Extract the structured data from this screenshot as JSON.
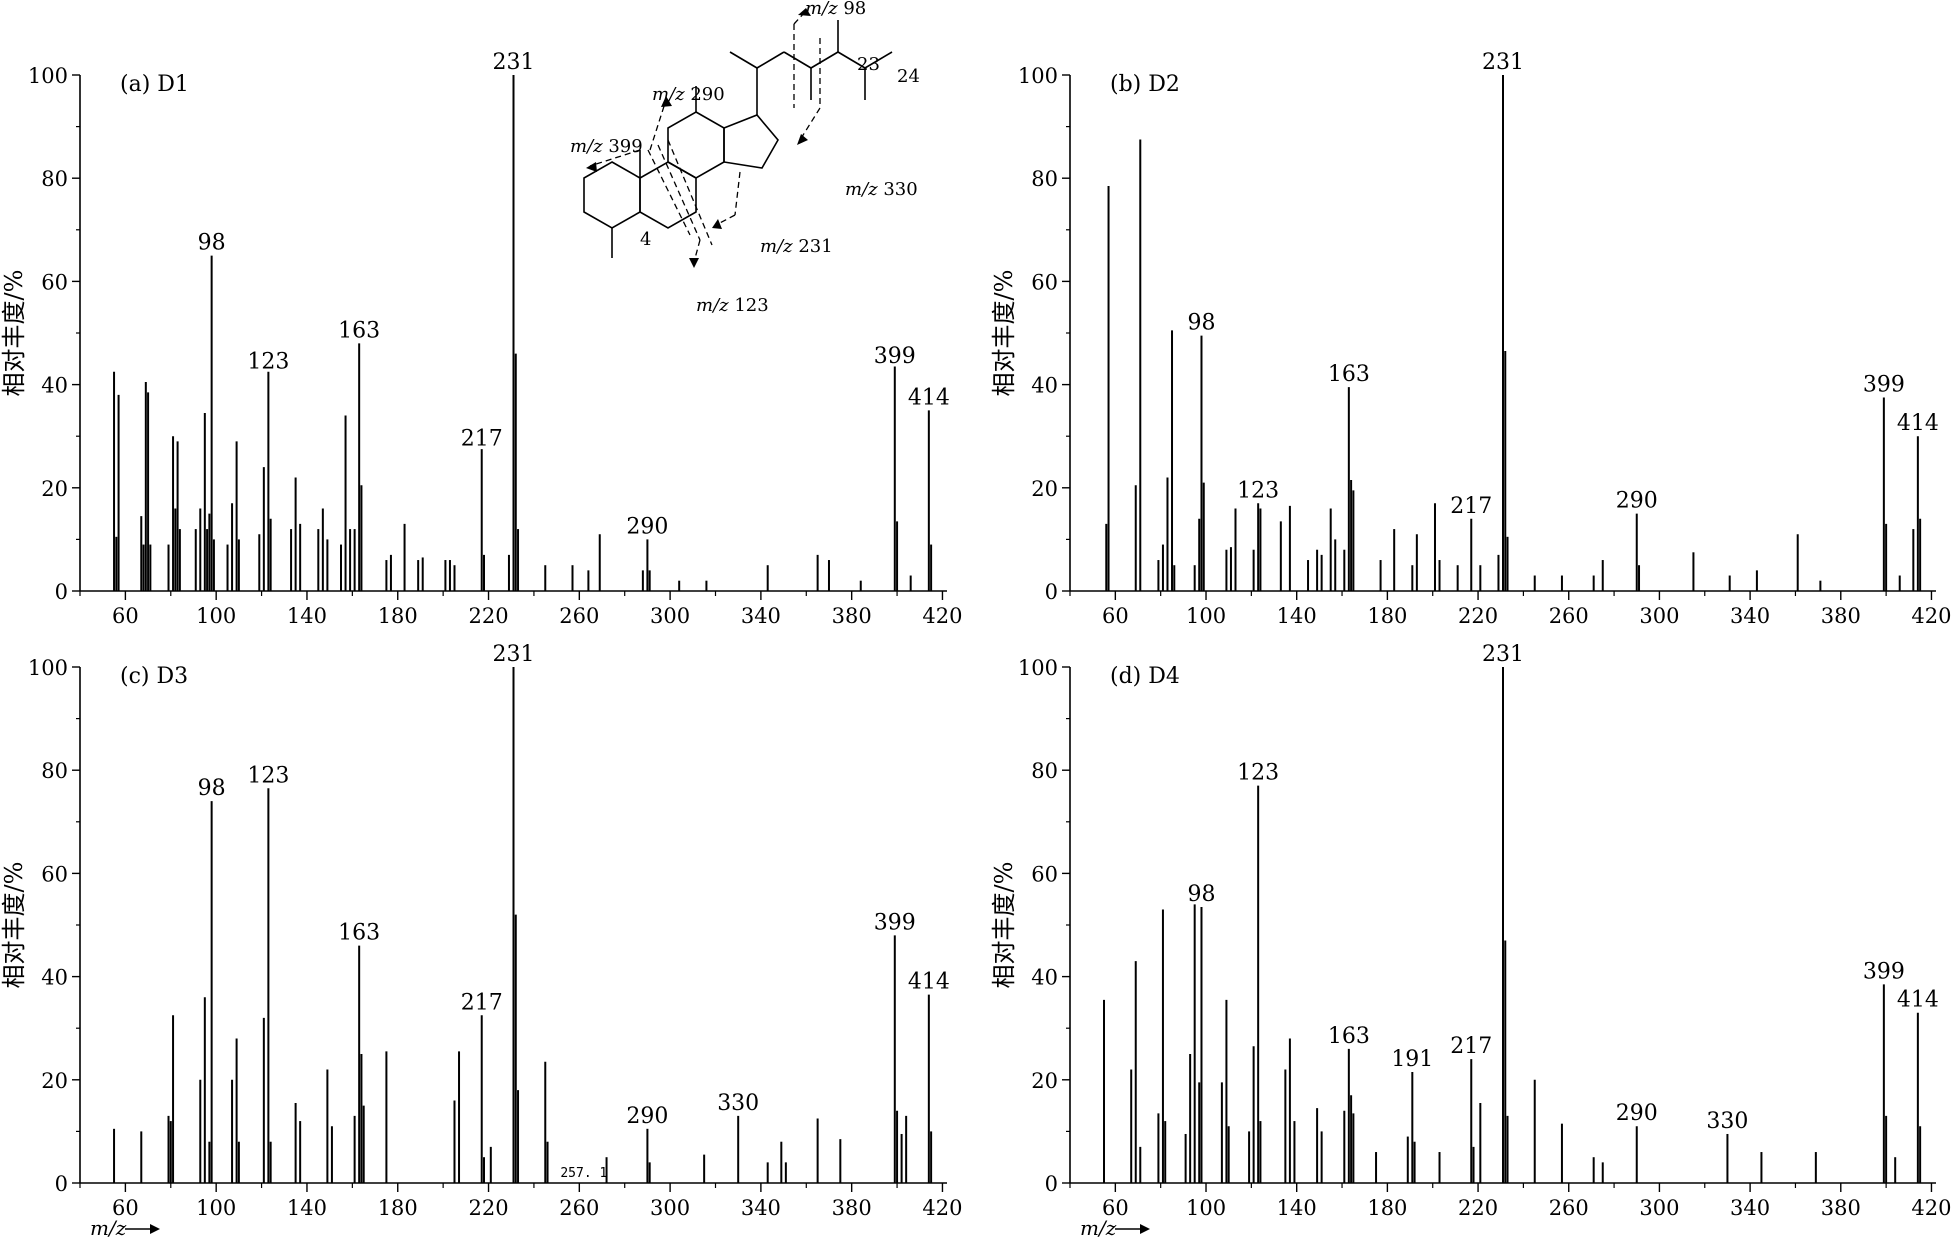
{
  "x_axis_label": "m/z",
  "chart_data": [
    {
      "type": "bar",
      "panel_label": "(a) D1",
      "ylabel": "相对丰度/%",
      "xlabel": "m/z",
      "xlim": [
        40,
        422
      ],
      "ylim": [
        0,
        100
      ],
      "xticks": [
        60,
        100,
        140,
        180,
        220,
        260,
        300,
        340,
        380,
        420
      ],
      "yticks": [
        0,
        20,
        40,
        60,
        80,
        100
      ],
      "peak_labels": [
        {
          "text": "98",
          "x": 98,
          "y": 65
        },
        {
          "text": "123",
          "x": 123,
          "y": 42
        },
        {
          "text": "163",
          "x": 163,
          "y": 48
        },
        {
          "text": "217",
          "x": 217,
          "y": 27
        },
        {
          "text": "231",
          "x": 231,
          "y": 100
        },
        {
          "text": "290",
          "x": 290,
          "y": 10
        },
        {
          "text": "399",
          "x": 399,
          "y": 43
        },
        {
          "text": "414",
          "x": 414,
          "y": 35
        }
      ],
      "peaks": [
        {
          "x": 55,
          "y": 42.5
        },
        {
          "x": 56,
          "y": 10.5
        },
        {
          "x": 57,
          "y": 38
        },
        {
          "x": 67,
          "y": 14.5
        },
        {
          "x": 68,
          "y": 9
        },
        {
          "x": 69,
          "y": 40.5
        },
        {
          "x": 70,
          "y": 38.5
        },
        {
          "x": 71,
          "y": 9
        },
        {
          "x": 79,
          "y": 9
        },
        {
          "x": 81,
          "y": 30
        },
        {
          "x": 82,
          "y": 16
        },
        {
          "x": 83,
          "y": 29
        },
        {
          "x": 84,
          "y": 12
        },
        {
          "x": 91,
          "y": 12
        },
        {
          "x": 93,
          "y": 16
        },
        {
          "x": 95,
          "y": 34.5
        },
        {
          "x": 96,
          "y": 12
        },
        {
          "x": 97,
          "y": 15
        },
        {
          "x": 98,
          "y": 65
        },
        {
          "x": 99,
          "y": 10
        },
        {
          "x": 105,
          "y": 9
        },
        {
          "x": 107,
          "y": 17
        },
        {
          "x": 109,
          "y": 29
        },
        {
          "x": 110,
          "y": 10
        },
        {
          "x": 119,
          "y": 11
        },
        {
          "x": 121,
          "y": 24
        },
        {
          "x": 123,
          "y": 42.5
        },
        {
          "x": 124,
          "y": 14
        },
        {
          "x": 133,
          "y": 12
        },
        {
          "x": 135,
          "y": 22
        },
        {
          "x": 137,
          "y": 13
        },
        {
          "x": 145,
          "y": 12
        },
        {
          "x": 147,
          "y": 16
        },
        {
          "x": 149,
          "y": 10
        },
        {
          "x": 155,
          "y": 9
        },
        {
          "x": 157,
          "y": 34
        },
        {
          "x": 159,
          "y": 12
        },
        {
          "x": 161,
          "y": 12
        },
        {
          "x": 163,
          "y": 48
        },
        {
          "x": 164,
          "y": 20.5
        },
        {
          "x": 175,
          "y": 6
        },
        {
          "x": 177,
          "y": 7
        },
        {
          "x": 183,
          "y": 13
        },
        {
          "x": 189,
          "y": 6
        },
        {
          "x": 191,
          "y": 6.5
        },
        {
          "x": 201,
          "y": 6
        },
        {
          "x": 203,
          "y": 6
        },
        {
          "x": 205,
          "y": 5
        },
        {
          "x": 217,
          "y": 27.5
        },
        {
          "x": 218,
          "y": 7
        },
        {
          "x": 229,
          "y": 7
        },
        {
          "x": 231,
          "y": 100
        },
        {
          "x": 232,
          "y": 46
        },
        {
          "x": 233,
          "y": 12
        },
        {
          "x": 245,
          "y": 5
        },
        {
          "x": 257,
          "y": 5
        },
        {
          "x": 264,
          "y": 4
        },
        {
          "x": 269,
          "y": 11
        },
        {
          "x": 288,
          "y": 4
        },
        {
          "x": 290,
          "y": 10
        },
        {
          "x": 291,
          "y": 4
        },
        {
          "x": 304,
          "y": 2
        },
        {
          "x": 316,
          "y": 2
        },
        {
          "x": 343,
          "y": 5
        },
        {
          "x": 365,
          "y": 7
        },
        {
          "x": 370,
          "y": 6
        },
        {
          "x": 384,
          "y": 2
        },
        {
          "x": 399,
          "y": 43.5
        },
        {
          "x": 400,
          "y": 13.5
        },
        {
          "x": 406,
          "y": 3
        },
        {
          "x": 414,
          "y": 35
        },
        {
          "x": 415,
          "y": 9
        }
      ]
    },
    {
      "type": "bar",
      "panel_label": "(b) D2",
      "ylabel": "相对丰度/%",
      "xlabel": "m/z",
      "xlim": [
        40,
        422
      ],
      "ylim": [
        0,
        100
      ],
      "xticks": [
        60,
        100,
        140,
        180,
        220,
        260,
        300,
        340,
        380,
        420
      ],
      "yticks": [
        0,
        20,
        40,
        60,
        80,
        100
      ],
      "peak_labels": [
        {
          "text": "98",
          "x": 98,
          "y": 49.5
        },
        {
          "text": "123",
          "x": 123,
          "y": 17
        },
        {
          "text": "163",
          "x": 163,
          "y": 39.5
        },
        {
          "text": "217",
          "x": 217,
          "y": 14
        },
        {
          "text": "231",
          "x": 231,
          "y": 100
        },
        {
          "text": "290",
          "x": 290,
          "y": 15
        },
        {
          "text": "399",
          "x": 399,
          "y": 37.5
        },
        {
          "text": "414",
          "x": 414,
          "y": 30
        }
      ],
      "peaks": [
        {
          "x": 57,
          "y": 78.5
        },
        {
          "x": 56,
          "y": 13
        },
        {
          "x": 69,
          "y": 20.5
        },
        {
          "x": 71,
          "y": 87.5
        },
        {
          "x": 79,
          "y": 6
        },
        {
          "x": 81,
          "y": 9
        },
        {
          "x": 83,
          "y": 22
        },
        {
          "x": 85,
          "y": 50.5
        },
        {
          "x": 86,
          "y": 5
        },
        {
          "x": 95,
          "y": 5
        },
        {
          "x": 97,
          "y": 14
        },
        {
          "x": 98,
          "y": 49.5
        },
        {
          "x": 99,
          "y": 21
        },
        {
          "x": 109,
          "y": 8
        },
        {
          "x": 111,
          "y": 8.5
        },
        {
          "x": 113,
          "y": 16
        },
        {
          "x": 121,
          "y": 8
        },
        {
          "x": 123,
          "y": 17
        },
        {
          "x": 124,
          "y": 16
        },
        {
          "x": 133,
          "y": 13.5
        },
        {
          "x": 137,
          "y": 16.5
        },
        {
          "x": 145,
          "y": 6
        },
        {
          "x": 149,
          "y": 8
        },
        {
          "x": 151,
          "y": 7
        },
        {
          "x": 155,
          "y": 16
        },
        {
          "x": 157,
          "y": 10
        },
        {
          "x": 161,
          "y": 8
        },
        {
          "x": 163,
          "y": 39.5
        },
        {
          "x": 164,
          "y": 21.5
        },
        {
          "x": 165,
          "y": 19.5
        },
        {
          "x": 177,
          "y": 6
        },
        {
          "x": 183,
          "y": 12
        },
        {
          "x": 191,
          "y": 5
        },
        {
          "x": 193,
          "y": 11
        },
        {
          "x": 201,
          "y": 17
        },
        {
          "x": 203,
          "y": 6
        },
        {
          "x": 211,
          "y": 5
        },
        {
          "x": 217,
          "y": 14
        },
        {
          "x": 221,
          "y": 5
        },
        {
          "x": 229,
          "y": 7
        },
        {
          "x": 231,
          "y": 100
        },
        {
          "x": 232,
          "y": 46.5
        },
        {
          "x": 233,
          "y": 10.5
        },
        {
          "x": 245,
          "y": 3
        },
        {
          "x": 257,
          "y": 3
        },
        {
          "x": 271,
          "y": 3
        },
        {
          "x": 275,
          "y": 6
        },
        {
          "x": 290,
          "y": 15
        },
        {
          "x": 291,
          "y": 5
        },
        {
          "x": 315,
          "y": 7.5
        },
        {
          "x": 331,
          "y": 3
        },
        {
          "x": 343,
          "y": 4
        },
        {
          "x": 361,
          "y": 11
        },
        {
          "x": 371,
          "y": 2
        },
        {
          "x": 399,
          "y": 37.5
        },
        {
          "x": 400,
          "y": 13
        },
        {
          "x": 406,
          "y": 3
        },
        {
          "x": 412,
          "y": 12
        },
        {
          "x": 414,
          "y": 30
        },
        {
          "x": 415,
          "y": 14
        }
      ]
    },
    {
      "type": "bar",
      "panel_label": "(c) D3",
      "ylabel": "相对丰度/%",
      "xlabel": "m/z",
      "xlim": [
        40,
        422
      ],
      "ylim": [
        0,
        100
      ],
      "xticks": [
        60,
        100,
        140,
        180,
        220,
        260,
        300,
        340,
        380,
        420
      ],
      "yticks": [
        0,
        20,
        40,
        60,
        80,
        100
      ],
      "annotation": "257. 1",
      "peak_labels": [
        {
          "text": "98",
          "x": 98,
          "y": 74
        },
        {
          "text": "123",
          "x": 123,
          "y": 76.5
        },
        {
          "text": "163",
          "x": 163,
          "y": 46
        },
        {
          "text": "217",
          "x": 217,
          "y": 32.5
        },
        {
          "text": "231",
          "x": 231,
          "y": 100
        },
        {
          "text": "290",
          "x": 290,
          "y": 10.5
        },
        {
          "text": "330",
          "x": 330,
          "y": 13
        },
        {
          "text": "399",
          "x": 399,
          "y": 48
        },
        {
          "text": "414",
          "x": 414,
          "y": 36.5
        }
      ],
      "peaks": [
        {
          "x": 55,
          "y": 10.5
        },
        {
          "x": 67,
          "y": 10
        },
        {
          "x": 79,
          "y": 13
        },
        {
          "x": 80,
          "y": 12
        },
        {
          "x": 81,
          "y": 32.5
        },
        {
          "x": 93,
          "y": 20
        },
        {
          "x": 95,
          "y": 36
        },
        {
          "x": 97,
          "y": 8
        },
        {
          "x": 98,
          "y": 74
        },
        {
          "x": 107,
          "y": 20
        },
        {
          "x": 109,
          "y": 28
        },
        {
          "x": 110,
          "y": 8
        },
        {
          "x": 121,
          "y": 32
        },
        {
          "x": 123,
          "y": 76.5
        },
        {
          "x": 124,
          "y": 8
        },
        {
          "x": 135,
          "y": 15.5
        },
        {
          "x": 137,
          "y": 12
        },
        {
          "x": 149,
          "y": 22
        },
        {
          "x": 151,
          "y": 11
        },
        {
          "x": 161,
          "y": 13
        },
        {
          "x": 163,
          "y": 46
        },
        {
          "x": 164,
          "y": 25
        },
        {
          "x": 165,
          "y": 15
        },
        {
          "x": 175,
          "y": 25.5
        },
        {
          "x": 205,
          "y": 16
        },
        {
          "x": 207,
          "y": 25.5
        },
        {
          "x": 217,
          "y": 32.5
        },
        {
          "x": 218,
          "y": 5
        },
        {
          "x": 221,
          "y": 7
        },
        {
          "x": 231,
          "y": 100
        },
        {
          "x": 232,
          "y": 52
        },
        {
          "x": 233,
          "y": 18
        },
        {
          "x": 245,
          "y": 23.5
        },
        {
          "x": 246,
          "y": 8
        },
        {
          "x": 272,
          "y": 5
        },
        {
          "x": 290,
          "y": 10.5
        },
        {
          "x": 291,
          "y": 4
        },
        {
          "x": 315,
          "y": 5.5
        },
        {
          "x": 330,
          "y": 13
        },
        {
          "x": 343,
          "y": 4
        },
        {
          "x": 349,
          "y": 8
        },
        {
          "x": 351,
          "y": 4
        },
        {
          "x": 365,
          "y": 12.5
        },
        {
          "x": 375,
          "y": 8.5
        },
        {
          "x": 399,
          "y": 48
        },
        {
          "x": 400,
          "y": 14
        },
        {
          "x": 402,
          "y": 9.5
        },
        {
          "x": 404,
          "y": 13
        },
        {
          "x": 414,
          "y": 36.5
        },
        {
          "x": 415,
          "y": 10
        }
      ]
    },
    {
      "type": "bar",
      "panel_label": "(d) D4",
      "ylabel": "相对丰度/%",
      "xlabel": "m/z",
      "xlim": [
        40,
        422
      ],
      "ylim": [
        0,
        100
      ],
      "xticks": [
        60,
        100,
        140,
        180,
        220,
        260,
        300,
        340,
        380,
        420
      ],
      "yticks": [
        0,
        20,
        40,
        60,
        80,
        100
      ],
      "peak_labels": [
        {
          "text": "98",
          "x": 98,
          "y": 53.5
        },
        {
          "text": "123",
          "x": 123,
          "y": 77
        },
        {
          "text": "163",
          "x": 163,
          "y": 26
        },
        {
          "text": "191",
          "x": 191,
          "y": 21.5
        },
        {
          "text": "217",
          "x": 217,
          "y": 24
        },
        {
          "text": "231",
          "x": 231,
          "y": 100
        },
        {
          "text": "290",
          "x": 290,
          "y": 11
        },
        {
          "text": "330",
          "x": 330,
          "y": 9.5
        },
        {
          "text": "399",
          "x": 399,
          "y": 38.5
        },
        {
          "text": "414",
          "x": 414,
          "y": 33
        }
      ],
      "peaks": [
        {
          "x": 55,
          "y": 35.5
        },
        {
          "x": 67,
          "y": 22
        },
        {
          "x": 69,
          "y": 43
        },
        {
          "x": 71,
          "y": 7
        },
        {
          "x": 79,
          "y": 13.5
        },
        {
          "x": 81,
          "y": 53
        },
        {
          "x": 82,
          "y": 12
        },
        {
          "x": 91,
          "y": 9.5
        },
        {
          "x": 93,
          "y": 25
        },
        {
          "x": 95,
          "y": 54
        },
        {
          "x": 97,
          "y": 19.5
        },
        {
          "x": 98,
          "y": 53.5
        },
        {
          "x": 107,
          "y": 19.5
        },
        {
          "x": 109,
          "y": 35.5
        },
        {
          "x": 110,
          "y": 11
        },
        {
          "x": 119,
          "y": 10
        },
        {
          "x": 121,
          "y": 26.5
        },
        {
          "x": 123,
          "y": 77
        },
        {
          "x": 124,
          "y": 12
        },
        {
          "x": 135,
          "y": 22
        },
        {
          "x": 137,
          "y": 28
        },
        {
          "x": 139,
          "y": 12
        },
        {
          "x": 149,
          "y": 14.5
        },
        {
          "x": 151,
          "y": 10
        },
        {
          "x": 161,
          "y": 14
        },
        {
          "x": 163,
          "y": 26
        },
        {
          "x": 164,
          "y": 17
        },
        {
          "x": 165,
          "y": 13.5
        },
        {
          "x": 175,
          "y": 6
        },
        {
          "x": 189,
          "y": 9
        },
        {
          "x": 191,
          "y": 21.5
        },
        {
          "x": 192,
          "y": 8
        },
        {
          "x": 203,
          "y": 6
        },
        {
          "x": 217,
          "y": 24
        },
        {
          "x": 218,
          "y": 7
        },
        {
          "x": 221,
          "y": 15.5
        },
        {
          "x": 231,
          "y": 100
        },
        {
          "x": 232,
          "y": 47
        },
        {
          "x": 233,
          "y": 13
        },
        {
          "x": 245,
          "y": 20
        },
        {
          "x": 257,
          "y": 11.5
        },
        {
          "x": 271,
          "y": 5
        },
        {
          "x": 275,
          "y": 4
        },
        {
          "x": 290,
          "y": 11
        },
        {
          "x": 330,
          "y": 9.5
        },
        {
          "x": 345,
          "y": 6
        },
        {
          "x": 369,
          "y": 6
        },
        {
          "x": 399,
          "y": 38.5
        },
        {
          "x": 400,
          "y": 13
        },
        {
          "x": 404,
          "y": 5
        },
        {
          "x": 414,
          "y": 33
        },
        {
          "x": 415,
          "y": 11
        }
      ]
    }
  ],
  "structure": {
    "fragments": [
      {
        "italic": "m/z",
        "value": " 98"
      },
      {
        "italic": "m/z",
        "value": " 290"
      },
      {
        "italic": "m/z",
        "value": " 399"
      },
      {
        "italic": "m/z",
        "value": " 330"
      },
      {
        "italic": "m/z",
        "value": " 231"
      },
      {
        "italic": "m/z",
        "value": " 123"
      }
    ],
    "position_labels": [
      "23",
      "24",
      "4"
    ]
  }
}
